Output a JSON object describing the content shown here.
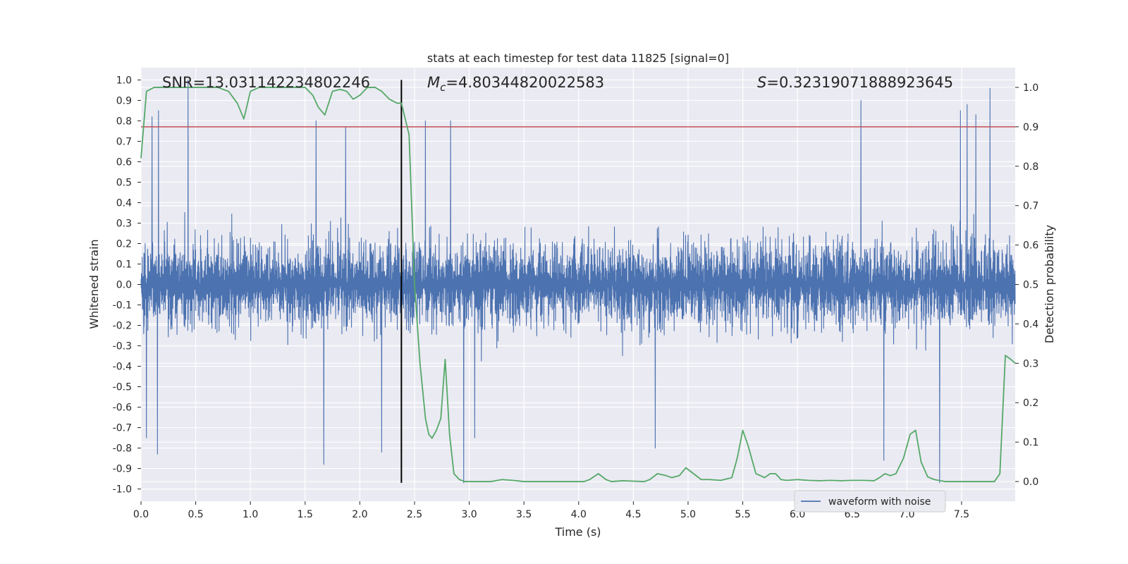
{
  "chart_data": {
    "type": "line",
    "title": "stats at each timestep for test data 11825 [signal=0]",
    "xlabel": "Time (s)",
    "ylabel_left": "Whitened strain",
    "ylabel_right": "Detection probability",
    "xlim": [
      0.0,
      7.99
    ],
    "ylim_left": [
      -1.06,
      1.06
    ],
    "ylim_right": [
      -0.05,
      1.05
    ],
    "grid": true,
    "x_ticks": [
      0.0,
      0.5,
      1.0,
      1.5,
      2.0,
      2.5,
      3.0,
      3.5,
      4.0,
      4.5,
      5.0,
      5.5,
      6.0,
      6.5,
      7.0,
      7.5
    ],
    "x_tick_labels": [
      "0.0",
      "0.5",
      "1.0",
      "1.5",
      "2.0",
      "2.5",
      "3.0",
      "3.5",
      "4.0",
      "4.5",
      "5.0",
      "5.5",
      "6.0",
      "6.5",
      "7.0",
      "7.5"
    ],
    "y_left_ticks": [
      1.0,
      0.9,
      0.8,
      0.7,
      0.6,
      0.5,
      0.4,
      0.3,
      0.2,
      0.1,
      0.0,
      -0.1,
      -0.2,
      -0.3,
      -0.4,
      -0.5,
      -0.6,
      -0.7,
      -0.8,
      -0.9,
      -1.0
    ],
    "y_left_tick_labels": [
      "1.0",
      "0.9",
      "0.8",
      "0.7",
      "0.6",
      "0.5",
      "0.4",
      "0.3",
      "0.2",
      "0.1",
      "0.0",
      "-0.1",
      "-0.2",
      "-0.3",
      "-0.4",
      "-0.5",
      "-0.6",
      "-0.7",
      "-0.8",
      "-0.9",
      "-1.0"
    ],
    "y_right_ticks": [
      1.0,
      0.9,
      0.8,
      0.7,
      0.6,
      0.5,
      0.4,
      0.3,
      0.2,
      0.1,
      0.0
    ],
    "y_right_tick_labels": [
      "1.0",
      "0.9",
      "0.8",
      "0.7",
      "0.6",
      "0.5",
      "0.4",
      "0.3",
      "0.2",
      "0.1",
      "0.0"
    ],
    "annotations": [
      {
        "text": "SNR=13.031142234802246"
      },
      {
        "text": "Mc=4.80344820022583"
      },
      {
        "text": "S=0.32319071888923645"
      }
    ],
    "threshold": {
      "value": 0.9,
      "axis": "right",
      "color": "#c44e52"
    },
    "vline": {
      "x": 2.38,
      "ymin": -0.97,
      "ymax": 1.0,
      "color": "#000000"
    },
    "legend": {
      "entries": [
        "waveform with noise"
      ],
      "loc": "lower right"
    },
    "series": [
      {
        "name": "waveform with noise",
        "color": "#4c72b0",
        "axis": "left",
        "kind": "dense-noise",
        "x_range": [
          0.0,
          7.99
        ],
        "amplitude_core": 0.35,
        "amplitude_max": 1.0,
        "spikes": [
          {
            "x": 0.43,
            "y": 1.0
          },
          {
            "x": 0.15,
            "y": 0.86
          },
          {
            "x": 0.16,
            "y": 0.85
          },
          {
            "x": 0.1,
            "y": 0.82
          },
          {
            "x": 1.6,
            "y": 0.8
          },
          {
            "x": 1.87,
            "y": 0.77
          },
          {
            "x": 2.6,
            "y": 0.8
          },
          {
            "x": 2.83,
            "y": 0.8
          },
          {
            "x": 6.58,
            "y": 0.9
          },
          {
            "x": 7.49,
            "y": 0.85
          },
          {
            "x": 7.55,
            "y": 0.88
          },
          {
            "x": 7.63,
            "y": 0.83
          },
          {
            "x": 7.76,
            "y": 0.96
          },
          {
            "x": 0.15,
            "y": -0.83
          },
          {
            "x": 1.67,
            "y": -0.88
          },
          {
            "x": 2.2,
            "y": -0.82
          },
          {
            "x": 2.95,
            "y": -0.97
          },
          {
            "x": 6.79,
            "y": -0.86
          },
          {
            "x": 7.3,
            "y": -0.97
          },
          {
            "x": 0.05,
            "y": -0.75
          },
          {
            "x": 3.05,
            "y": -0.75
          },
          {
            "x": 4.7,
            "y": -0.8
          }
        ]
      },
      {
        "name": "detection probability",
        "color": "#55a868",
        "axis": "right",
        "x": [
          0.0,
          0.05,
          0.12,
          0.2,
          0.3,
          0.4,
          0.5,
          0.6,
          0.7,
          0.8,
          0.88,
          0.94,
          1.0,
          1.08,
          1.2,
          1.3,
          1.4,
          1.5,
          1.57,
          1.62,
          1.68,
          1.75,
          1.82,
          1.88,
          1.94,
          2.0,
          2.07,
          2.14,
          2.2,
          2.27,
          2.34,
          2.38,
          2.45,
          2.5,
          2.55,
          2.6,
          2.63,
          2.66,
          2.7,
          2.74,
          2.78,
          2.82,
          2.86,
          2.91,
          2.96,
          3.1,
          3.2,
          3.3,
          3.4,
          3.5,
          3.7,
          3.9,
          4.05,
          4.1,
          4.18,
          4.25,
          4.3,
          4.4,
          4.5,
          4.6,
          4.65,
          4.72,
          4.8,
          4.85,
          4.92,
          4.98,
          5.05,
          5.12,
          5.2,
          5.3,
          5.4,
          5.45,
          5.5,
          5.55,
          5.62,
          5.7,
          5.75,
          5.8,
          5.85,
          5.9,
          6.0,
          6.1,
          6.2,
          6.3,
          6.4,
          6.5,
          6.6,
          6.7,
          6.75,
          6.8,
          6.85,
          6.9,
          6.97,
          7.03,
          7.08,
          7.13,
          7.19,
          7.25,
          7.35,
          7.5,
          7.7,
          7.8,
          7.85,
          7.9,
          7.95,
          7.99
        ],
        "y": [
          0.82,
          0.99,
          1.0,
          1.0,
          1.0,
          1.0,
          1.0,
          1.0,
          1.0,
          0.99,
          0.96,
          0.92,
          0.99,
          1.0,
          1.0,
          1.0,
          1.0,
          1.0,
          0.98,
          0.95,
          0.93,
          0.99,
          0.995,
          0.99,
          0.97,
          0.98,
          1.0,
          1.0,
          0.99,
          0.97,
          0.96,
          0.96,
          0.88,
          0.5,
          0.3,
          0.16,
          0.12,
          0.11,
          0.13,
          0.16,
          0.31,
          0.12,
          0.02,
          0.005,
          0.0,
          0.0,
          0.0,
          0.005,
          0.003,
          0.0,
          0.0,
          0.0,
          0.0,
          0.005,
          0.02,
          0.005,
          0.0,
          0.002,
          0.001,
          0.0,
          0.005,
          0.02,
          0.015,
          0.01,
          0.015,
          0.035,
          0.02,
          0.005,
          0.005,
          0.003,
          0.01,
          0.06,
          0.13,
          0.09,
          0.02,
          0.01,
          0.02,
          0.02,
          0.005,
          0.003,
          0.005,
          0.003,
          0.002,
          0.003,
          0.002,
          0.003,
          0.003,
          0.002,
          0.01,
          0.02,
          0.015,
          0.02,
          0.06,
          0.12,
          0.13,
          0.05,
          0.012,
          0.005,
          0.0,
          0.0,
          0.0,
          0.0,
          0.02,
          0.32,
          0.31,
          0.3
        ]
      }
    ]
  }
}
